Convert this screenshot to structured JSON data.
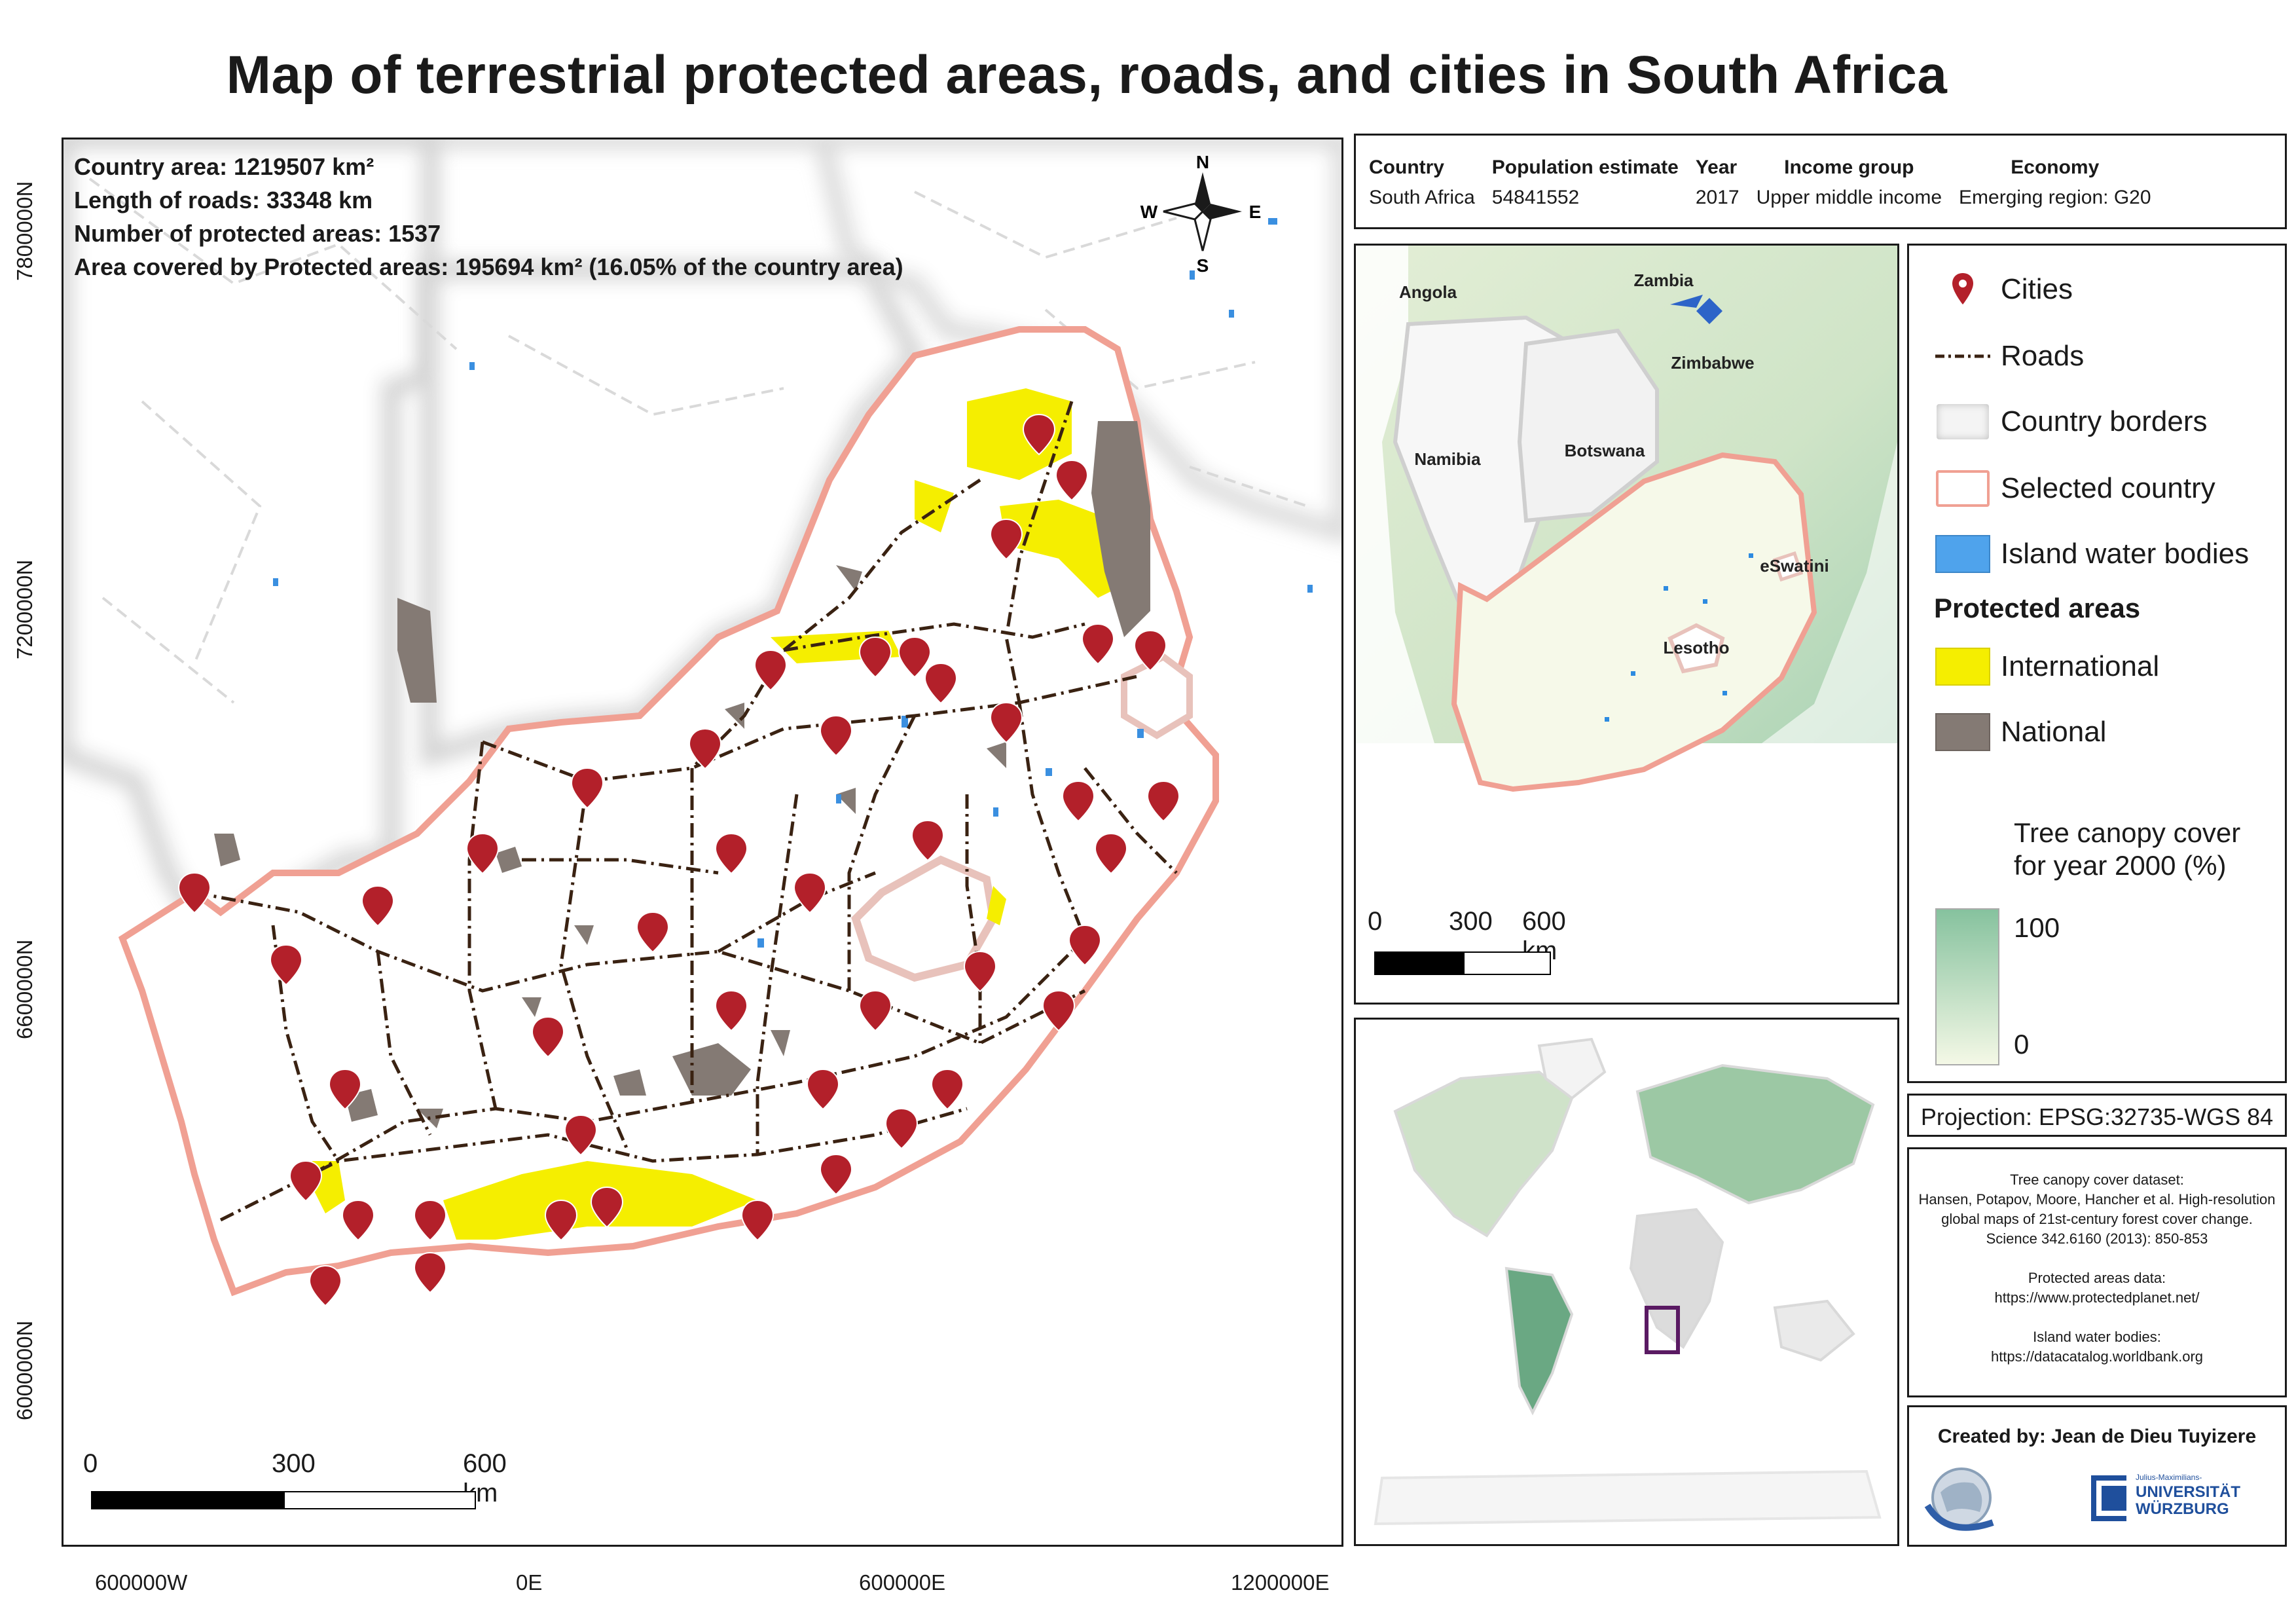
{
  "title": "Map of terrestrial protected areas, roads, and cities in South Africa",
  "stats": {
    "country_area": "Country area: 1219507 km²",
    "roads_length": "Length of roads: 33348 km",
    "protected_count": "Number of protected areas: 1537",
    "protected_area": "Area covered by Protected areas: 195694 km² (16.05% of the country area)"
  },
  "compass": {
    "n": "N",
    "s": "S",
    "e": "E",
    "w": "W"
  },
  "main_scale": {
    "labels": [
      "0",
      "300",
      "600 km"
    ]
  },
  "axes": {
    "x_ticks": [
      "600000W",
      "0E",
      "600000E",
      "1200000E"
    ],
    "y_ticks": [
      "7800000N",
      "7200000N",
      "6600000N",
      "6000000N"
    ]
  },
  "info_table": {
    "headers": [
      "Country",
      "Population estimate",
      "Year",
      "Income group",
      "Economy"
    ],
    "row": [
      "South Africa",
      "54841552",
      "2017",
      "Upper middle income",
      "Emerging region: G20"
    ]
  },
  "inset": {
    "country_labels": [
      "Angola",
      "Zambia",
      "Zimbabwe",
      "Namibia",
      "Botswana",
      "eSwatini",
      "Lesotho"
    ],
    "scale_labels": [
      "0",
      "300",
      "600 km"
    ]
  },
  "legend": {
    "items": [
      {
        "label": "Cities",
        "icon": "map-pin-icon"
      },
      {
        "label": "Roads",
        "icon": "dash-dot-line"
      },
      {
        "label": "Country borders",
        "icon": "grey-patch"
      },
      {
        "label": "Selected country",
        "icon": "red-outline-patch"
      },
      {
        "label": "Island water bodies",
        "icon": "blue-patch"
      }
    ],
    "protected_heading": "Protected areas",
    "protected_items": [
      {
        "label": "International",
        "color": "#f5ee00"
      },
      {
        "label": "National",
        "color": "#847a74"
      }
    ],
    "canopy_title_line1": "Tree canopy cover",
    "canopy_title_line2": "for year 2000 (%)",
    "canopy_max": "100",
    "canopy_min": "0"
  },
  "projection": "Projection: EPSG:32735-WGS 84",
  "credits": {
    "lines": [
      "Tree canopy cover dataset:",
      "Hansen, Potapov, Moore, Hancher et al. High-resolution",
      "global maps of 21st-century forest cover change.",
      "Science 342.6160 (2013): 850-853",
      "",
      "Protected areas data:",
      "https://www.protectedplanet.net/",
      "",
      "Island water bodies:",
      "https://datacatalog.worldbank.org"
    ]
  },
  "created_by": "Created by: Jean de Dieu Tuyizere",
  "logo_text": {
    "line1": "Julius-Maximilians-",
    "line2": "UNIVERSITÄT",
    "line3": "WÜRZBURG"
  },
  "colors": {
    "international": "#f5ee00",
    "national": "#847a74",
    "road": "#3a2212",
    "city_pin": "#b3202a",
    "water": "#3a8fe0",
    "country_outline": "#f0a093",
    "canopy_high": "#86c29e",
    "canopy_low": "#f4f8e6",
    "region_box": "#5a1a63"
  }
}
